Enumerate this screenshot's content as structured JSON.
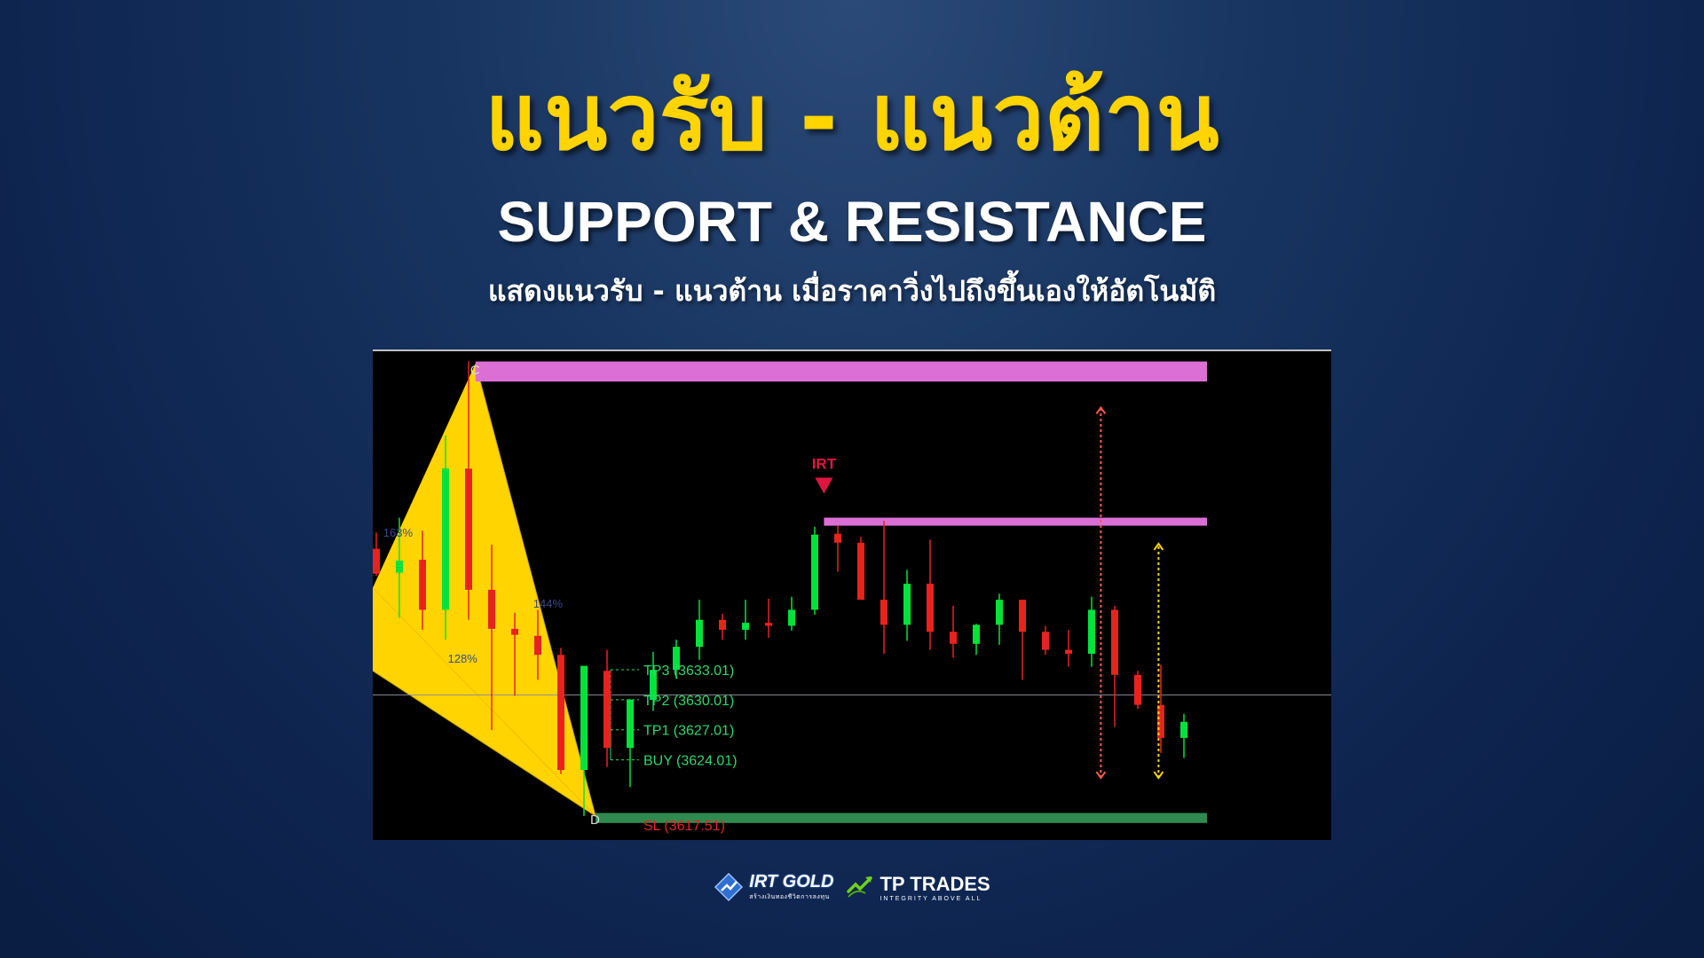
{
  "header": {
    "title": "แนวรับ - แนวต้าน",
    "subtitle": "SUPPORT & RESISTANCE",
    "description": "แสดงแนวรับ - แนวต้าน เมื่อราคาวิ่งไปถึงขึ้นเองให้อัตโนมัติ"
  },
  "logos": {
    "irt": {
      "name": "IRT GOLD",
      "tagline": "สร้างเงินทองชีวิตการลงทุน"
    },
    "tp": {
      "name": "TP TRADES",
      "tagline": "INTEGRITY ABOVE ALL"
    }
  },
  "chart_data": {
    "type": "candlestick",
    "colors": {
      "background": "#000000",
      "up": "#00e33a",
      "down": "#e8231e",
      "resistance": "#dc6fd6",
      "support": "#2e8a4f",
      "pattern": "#ffd400",
      "irt_marker": "#e0153f",
      "sl": "#e8231e",
      "target_line": "#2bd96a"
    },
    "price_line": 3630.5,
    "ylim": [
      3616,
      3665
    ],
    "zones": [
      {
        "name": "resistance-top",
        "x_start": 4.3,
        "x_end": 36,
        "y_low": 3661.8,
        "y_high": 3663.8
      },
      {
        "name": "resistance-mid",
        "x_start": 19.4,
        "x_end": 36,
        "y_low": 3647.4,
        "y_high": 3648.2
      },
      {
        "name": "support",
        "x_start": 9.5,
        "x_end": 36,
        "y_low": 3617.7,
        "y_high": 3618.7
      }
    ],
    "pattern_points": [
      {
        "label": "",
        "x": 0,
        "y": 3641.2
      },
      {
        "label": "C",
        "x": 4.3,
        "y": 3663.6
      },
      {
        "label": "D",
        "x": 9.5,
        "y": 3618.4
      },
      {
        "label": "",
        "x": 0,
        "y": 3632.9
      }
    ],
    "fib_labels": [
      {
        "text": "163%",
        "x": 0.3,
        "y": 3646.3
      },
      {
        "text": "144%",
        "x": 6.8,
        "y": 3639.2
      },
      {
        "text": "128%",
        "x": 3.1,
        "y": 3633.7
      }
    ],
    "levels": [
      {
        "label": "TP3 (3633.01)",
        "value": 3633.01,
        "color": "#2bd96a"
      },
      {
        "label": "TP2 (3630.01)",
        "value": 3630.01,
        "color": "#2bd96a"
      },
      {
        "label": "TP1 (3627.01)",
        "value": 3627.01,
        "color": "#2bd96a"
      },
      {
        "label": "BUY (3624.01)",
        "value": 3624.01,
        "color": "#2bd96a"
      },
      {
        "label": "SL (3617.51)",
        "value": 3617.51,
        "color": "#e8231e"
      }
    ],
    "irt_signal": {
      "label": "IRT",
      "x": 19.4,
      "y": 3650.6
    },
    "target_arrows": [
      {
        "x": 31.4,
        "y_from": 3622.2,
        "y_to": 3659.2,
        "color": "#ff5a4a"
      },
      {
        "x": 33.9,
        "y_from": 3622.2,
        "y_to": 3645.6,
        "color": "#ffd400"
      }
    ],
    "candles": [
      {
        "o": 3645.1,
        "h": 3646.7,
        "l": 3642.4,
        "c": 3642.6
      },
      {
        "o": 3642.7,
        "h": 3648.2,
        "l": 3638.2,
        "c": 3643.9
      },
      {
        "o": 3644.0,
        "h": 3646.9,
        "l": 3637.0,
        "c": 3639.0
      },
      {
        "o": 3639.0,
        "h": 3656.4,
        "l": 3636.0,
        "c": 3653.1
      },
      {
        "o": 3653.1,
        "h": 3663.8,
        "l": 3638.0,
        "c": 3641.0
      },
      {
        "o": 3641.0,
        "h": 3645.5,
        "l": 3627.0,
        "c": 3637.1
      },
      {
        "o": 3637.1,
        "h": 3638.7,
        "l": 3630.4,
        "c": 3636.5
      },
      {
        "o": 3636.4,
        "h": 3639.0,
        "l": 3632.0,
        "c": 3634.5
      },
      {
        "o": 3634.5,
        "h": 3635.2,
        "l": 3622.6,
        "c": 3623.0
      },
      {
        "o": 3623.0,
        "h": 3633.4,
        "l": 3618.4,
        "c": 3633.4
      },
      {
        "o": 3632.9,
        "h": 3635.0,
        "l": 3623.3,
        "c": 3625.2
      },
      {
        "o": 3625.2,
        "h": 3630.1,
        "l": 3621.3,
        "c": 3630.0
      },
      {
        "o": 3630.0,
        "h": 3634.8,
        "l": 3628.9,
        "c": 3633.0
      },
      {
        "o": 3633.0,
        "h": 3636.0,
        "l": 3632.1,
        "c": 3635.3
      },
      {
        "o": 3635.3,
        "h": 3640.0,
        "l": 3634.0,
        "c": 3638.0
      },
      {
        "o": 3638.0,
        "h": 3638.6,
        "l": 3636.0,
        "c": 3637.0
      },
      {
        "o": 3637.0,
        "h": 3640.0,
        "l": 3636.0,
        "c": 3637.7
      },
      {
        "o": 3637.7,
        "h": 3640.1,
        "l": 3636.2,
        "c": 3637.4
      },
      {
        "o": 3637.4,
        "h": 3640.3,
        "l": 3636.9,
        "c": 3639.0
      },
      {
        "o": 3639.0,
        "h": 3647.3,
        "l": 3638.5,
        "c": 3646.5
      },
      {
        "o": 3646.6,
        "h": 3647.4,
        "l": 3642.8,
        "c": 3645.7
      },
      {
        "o": 3645.7,
        "h": 3646.3,
        "l": 3640.0,
        "c": 3640.0
      },
      {
        "o": 3640.0,
        "h": 3647.9,
        "l": 3634.6,
        "c": 3637.5
      },
      {
        "o": 3637.5,
        "h": 3643.0,
        "l": 3635.9,
        "c": 3641.6
      },
      {
        "o": 3641.6,
        "h": 3646.0,
        "l": 3635.0,
        "c": 3636.8
      },
      {
        "o": 3636.8,
        "h": 3639.4,
        "l": 3634.2,
        "c": 3635.6
      },
      {
        "o": 3635.6,
        "h": 3637.6,
        "l": 3634.5,
        "c": 3637.5
      },
      {
        "o": 3637.5,
        "h": 3640.6,
        "l": 3635.5,
        "c": 3640.0
      },
      {
        "o": 3640.0,
        "h": 3640.0,
        "l": 3632.0,
        "c": 3636.8
      },
      {
        "o": 3636.8,
        "h": 3637.4,
        "l": 3634.5,
        "c": 3635.0
      },
      {
        "o": 3635.0,
        "h": 3637.0,
        "l": 3633.3,
        "c": 3634.6
      },
      {
        "o": 3634.6,
        "h": 3640.3,
        "l": 3633.3,
        "c": 3639.0
      },
      {
        "o": 3639.0,
        "h": 3639.4,
        "l": 3627.3,
        "c": 3632.5
      },
      {
        "o": 3632.5,
        "h": 3632.9,
        "l": 3629.1,
        "c": 3629.5
      },
      {
        "o": 3629.5,
        "h": 3633.5,
        "l": 3624.7,
        "c": 3626.2
      },
      {
        "o": 3626.2,
        "h": 3628.6,
        "l": 3624.2,
        "c": 3627.8
      }
    ]
  }
}
